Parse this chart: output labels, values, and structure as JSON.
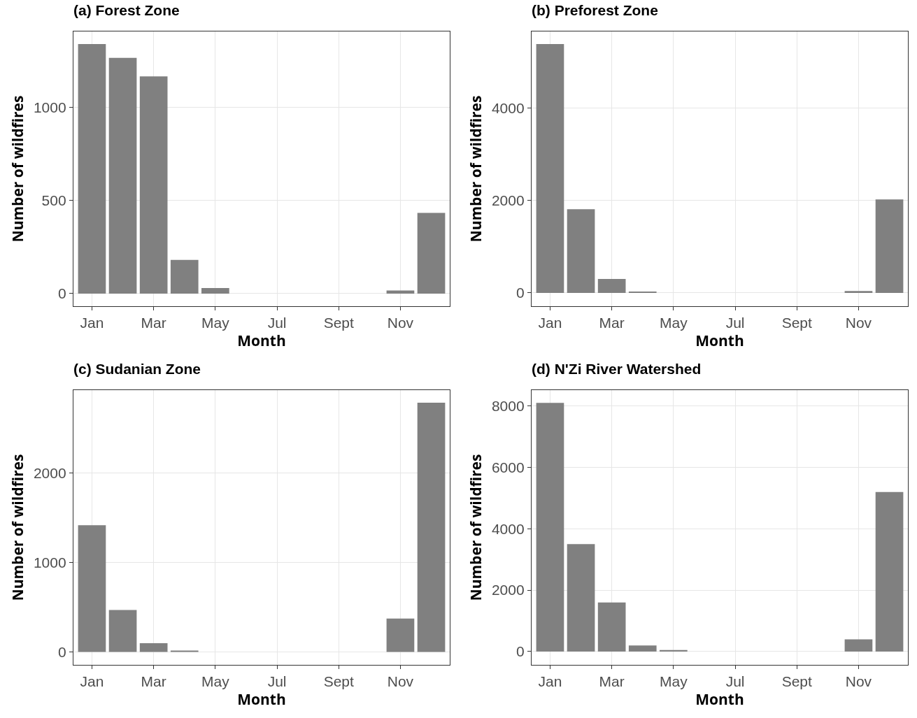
{
  "chart_data": [
    {
      "type": "bar",
      "title": "(a) Forest Zone",
      "xlabel": "Month",
      "ylabel": "Number of wildfires",
      "categories": [
        "Jan",
        null,
        "Mar",
        null,
        "May",
        null,
        "Jul",
        null,
        "Sept",
        null,
        "Nov",
        null
      ],
      "values": [
        1341,
        1267,
        1168,
        181,
        30,
        0,
        0,
        0,
        0,
        0,
        17,
        434
      ],
      "color": "#808080",
      "ylim": [
        -68,
        1409
      ],
      "yticks": [
        0,
        500,
        1000
      ],
      "grid": true
    },
    {
      "type": "bar",
      "title": "(b) Preforest Zone",
      "xlabel": "Month",
      "ylabel": "Number of wildfires",
      "categories": [
        "Jan",
        null,
        "Mar",
        null,
        "May",
        null,
        "Jul",
        null,
        "Sept",
        null,
        "Nov",
        null
      ],
      "values": [
        5380,
        1810,
        300,
        30,
        0,
        0,
        0,
        0,
        0,
        0,
        40,
        2020
      ],
      "color": "#808080",
      "ylim": [
        -288,
        5654
      ],
      "yticks": [
        0,
        2000,
        4000
      ],
      "grid": true
    },
    {
      "type": "bar",
      "title": "(c) Sudanian Zone",
      "xlabel": "Month",
      "ylabel": "Number of wildfires",
      "categories": [
        "Jan",
        null,
        "Mar",
        null,
        "May",
        null,
        "Jul",
        null,
        "Sept",
        null,
        "Nov",
        null
      ],
      "values": [
        1419,
        470,
        98,
        16,
        0,
        0,
        0,
        0,
        0,
        0,
        375,
        2790
      ],
      "color": "#808080",
      "ylim": [
        -144,
        2930
      ],
      "yticks": [
        0,
        1000,
        2000
      ],
      "grid": true
    },
    {
      "type": "bar",
      "title": "(d) N'Zi River Watershed",
      "xlabel": "Month",
      "ylabel": "Number of wildfires",
      "categories": [
        "Jan",
        null,
        "Mar",
        null,
        "May",
        null,
        "Jul",
        null,
        "Sept",
        null,
        "Nov",
        null
      ],
      "values": [
        8100,
        3500,
        1600,
        200,
        50,
        0,
        0,
        0,
        0,
        0,
        400,
        5200
      ],
      "color": "#808080",
      "ylim": [
        -434,
        8517
      ],
      "yticks": [
        0,
        2000,
        4000,
        6000,
        8000
      ],
      "grid": true
    }
  ]
}
